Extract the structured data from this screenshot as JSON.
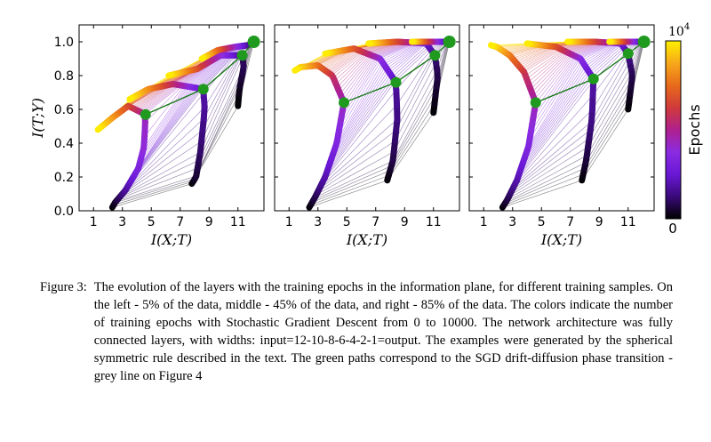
{
  "figure": {
    "panels": [
      {
        "id": "left",
        "ylabel": "I(T;Y)",
        "xlabel": "I(X;T)",
        "xticks": [
          "1",
          "3",
          "5",
          "7",
          "9",
          "11"
        ],
        "yticks": [
          "0.0",
          "0.2",
          "0.4",
          "0.6",
          "0.8",
          "1.0"
        ],
        "green_path": [
          [
            4.6,
            0.57
          ],
          [
            8.6,
            0.72
          ],
          [
            11.3,
            0.92
          ],
          [
            12.1,
            1.0
          ]
        ],
        "layers": [
          [
            [
              2.3,
              0.02
            ],
            [
              2.5,
              0.05
            ],
            [
              3.2,
              0.12
            ],
            [
              4.1,
              0.25
            ],
            [
              4.5,
              0.38
            ],
            [
              4.6,
              0.57
            ],
            [
              3.4,
              0.62
            ],
            [
              2.3,
              0.55
            ],
            [
              1.3,
              0.48
            ]
          ],
          [
            [
              7.8,
              0.16
            ],
            [
              8.1,
              0.2
            ],
            [
              8.4,
              0.35
            ],
            [
              8.7,
              0.6
            ],
            [
              8.6,
              0.72
            ],
            [
              6.5,
              0.75
            ],
            [
              4.8,
              0.72
            ],
            [
              3.5,
              0.66
            ]
          ],
          [
            [
              11.0,
              0.62
            ],
            [
              11.1,
              0.72
            ],
            [
              11.4,
              0.85
            ],
            [
              11.3,
              0.92
            ],
            [
              9.8,
              0.92
            ],
            [
              8.2,
              0.84
            ],
            [
              6.2,
              0.8
            ]
          ],
          [
            [
              12.1,
              1.0
            ],
            [
              11.7,
              0.98
            ],
            [
              10.8,
              0.97
            ],
            [
              9.6,
              0.95
            ],
            [
              8.5,
              0.9
            ]
          ]
        ]
      },
      {
        "id": "middle",
        "ylabel": "",
        "xlabel": "I(X;T)",
        "xticks": [
          "1",
          "3",
          "5",
          "7",
          "9",
          "11"
        ],
        "yticks": [],
        "green_path": [
          [
            4.8,
            0.64
          ],
          [
            8.4,
            0.76
          ],
          [
            11.1,
            0.92
          ],
          [
            12.1,
            1.0
          ]
        ],
        "layers": [
          [
            [
              2.4,
              0.02
            ],
            [
              2.8,
              0.08
            ],
            [
              3.5,
              0.2
            ],
            [
              4.3,
              0.4
            ],
            [
              4.8,
              0.64
            ],
            [
              4.0,
              0.8
            ],
            [
              3.0,
              0.86
            ],
            [
              1.8,
              0.85
            ],
            [
              1.4,
              0.83
            ]
          ],
          [
            [
              7.8,
              0.18
            ],
            [
              8.2,
              0.3
            ],
            [
              8.5,
              0.55
            ],
            [
              8.4,
              0.76
            ],
            [
              7.3,
              0.9
            ],
            [
              5.5,
              0.96
            ],
            [
              3.5,
              0.93
            ]
          ],
          [
            [
              11.0,
              0.58
            ],
            [
              11.3,
              0.8
            ],
            [
              11.1,
              0.92
            ],
            [
              10.5,
              0.99
            ],
            [
              8.5,
              1.0
            ],
            [
              6.5,
              0.99
            ]
          ],
          [
            [
              12.1,
              1.0
            ],
            [
              11.4,
              1.0
            ],
            [
              10.5,
              1.0
            ],
            [
              9.5,
              1.0
            ]
          ]
        ]
      },
      {
        "id": "right",
        "ylabel": "",
        "xlabel": "I(X;T)",
        "xticks": [
          "1",
          "3",
          "5",
          "7",
          "9",
          "11"
        ],
        "yticks": [],
        "green_path": [
          [
            4.6,
            0.64
          ],
          [
            8.6,
            0.78
          ],
          [
            11.0,
            0.93
          ],
          [
            12.1,
            1.0
          ]
        ],
        "layers": [
          [
            [
              2.3,
              0.02
            ],
            [
              2.6,
              0.06
            ],
            [
              3.3,
              0.18
            ],
            [
              4.1,
              0.38
            ],
            [
              4.6,
              0.64
            ],
            [
              3.8,
              0.82
            ],
            [
              2.8,
              0.92
            ],
            [
              1.9,
              0.97
            ],
            [
              1.5,
              0.98
            ]
          ],
          [
            [
              7.8,
              0.18
            ],
            [
              8.1,
              0.3
            ],
            [
              8.5,
              0.55
            ],
            [
              8.6,
              0.78
            ],
            [
              7.7,
              0.9
            ],
            [
              6.0,
              0.97
            ],
            [
              4.0,
              0.99
            ]
          ],
          [
            [
              11.0,
              0.6
            ],
            [
              11.3,
              0.8
            ],
            [
              11.0,
              0.93
            ],
            [
              10.5,
              0.99
            ],
            [
              8.7,
              1.0
            ],
            [
              6.8,
              1.0
            ]
          ],
          [
            [
              12.1,
              1.0
            ],
            [
              11.4,
              1.0
            ],
            [
              10.5,
              1.0
            ],
            [
              9.7,
              1.0
            ]
          ]
        ]
      }
    ],
    "colorbar": {
      "label": "Epochs",
      "top_label": "10",
      "top_exponent": "4",
      "bottom_label": "0",
      "colors": [
        "#000000",
        "#3a0a7a",
        "#6a18d6",
        "#8a2be2",
        "#b0208e",
        "#d03a3a",
        "#e86a1a",
        "#f7a81a",
        "#fff000"
      ]
    }
  },
  "chart_data": [
    {
      "type": "line",
      "title": "",
      "xlabel": "I(X;T)",
      "ylabel": "I(T;Y)",
      "xlim": [
        0,
        12.8
      ],
      "ylim": [
        0,
        1.1
      ],
      "series": [
        {
          "values": [
            [
              4.6,
              0.57
            ],
            [
              8.6,
              0.72
            ],
            [
              11.3,
              0.92
            ],
            [
              12.1,
              1.0
            ]
          ]
        }
      ]
    },
    {
      "type": "line",
      "title": "",
      "xlabel": "I(X;T)",
      "ylabel": "",
      "xlim": [
        0,
        12.8
      ],
      "ylim": [
        0,
        1.1
      ],
      "series": [
        {
          "values": [
            [
              4.8,
              0.64
            ],
            [
              8.4,
              0.76
            ],
            [
              11.1,
              0.92
            ],
            [
              12.1,
              1.0
            ]
          ]
        }
      ]
    },
    {
      "type": "line",
      "title": "",
      "xlabel": "I(X;T)",
      "ylabel": "",
      "xlim": [
        0,
        12.8
      ],
      "ylim": [
        0,
        1.1
      ],
      "series": [
        {
          "values": [
            [
              4.6,
              0.64
            ],
            [
              8.6,
              0.78
            ],
            [
              11.0,
              0.93
            ],
            [
              12.1,
              1.0
            ]
          ]
        }
      ]
    }
  ],
  "caption": {
    "label": "Figure 3:",
    "text": "The evolution of the layers with the training epochs in the information plane, for different training samples. On the left - 5% of the data, middle - 45% of the data, and right - 85% of the data. The colors indicate the number of training epochs with Stochastic Gradient Descent from 0 to 10000. The network architecture was fully connected layers, with widths: input=12-10-8-6-4-2-1=output. The examples were generated by the spherical symmetric rule described in the text. The green paths correspond to the SGD drift-diffusion phase transition - grey line on Figure 4"
  }
}
